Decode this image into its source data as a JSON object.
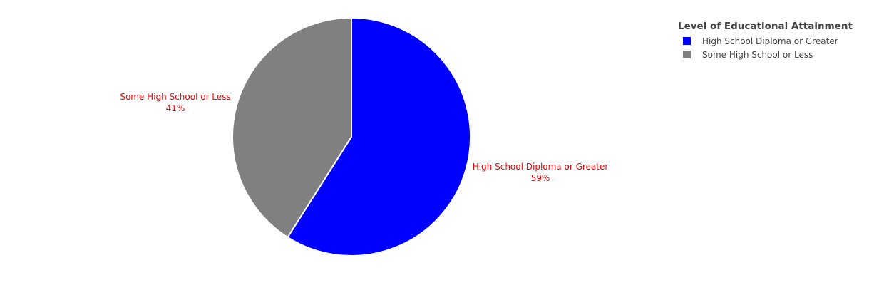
{
  "chart_data": {
    "type": "pie",
    "labels": [
      "High School Diploma or Greater",
      "Some High School or Less"
    ],
    "values": [
      59,
      41
    ],
    "percent_text": [
      "59%",
      "41%"
    ],
    "colors": [
      "#0000ff",
      "#808080"
    ],
    "label_color": "#ff0000",
    "legend": {
      "title": "Level of Educational Attainment",
      "placement": "top-right",
      "items": [
        {
          "label": "High School Diploma or Greater",
          "color": "#0000ff"
        },
        {
          "label": "Some High School or Less",
          "color": "#808080"
        }
      ]
    }
  }
}
